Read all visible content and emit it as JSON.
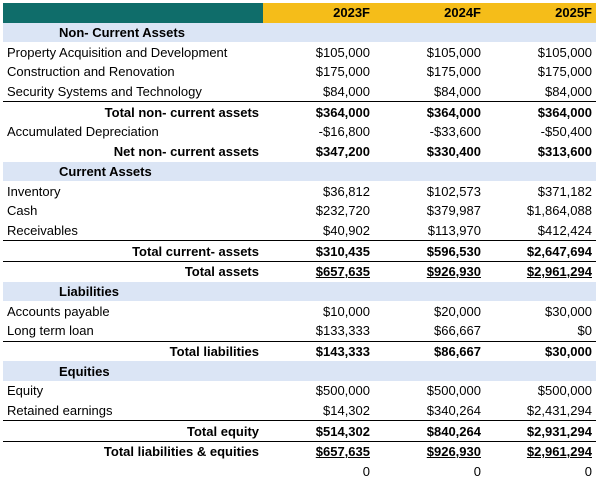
{
  "header": {
    "years": [
      "2023F",
      "2024F",
      "2025F"
    ]
  },
  "rows": [
    {
      "type": "section",
      "label": "Non- Current Assets"
    },
    {
      "type": "line",
      "label": "Property Acquisition and Development",
      "values": [
        "$105,000",
        "$105,000",
        "$105,000"
      ]
    },
    {
      "type": "line",
      "label": "Construction and Renovation",
      "values": [
        "$175,000",
        "$175,000",
        "$175,000"
      ]
    },
    {
      "type": "line",
      "label": "Security Systems and Technology",
      "values": [
        "$84,000",
        "$84,000",
        "$84,000"
      ]
    },
    {
      "type": "total",
      "label": "Total non- current assets",
      "values": [
        "$364,000",
        "$364,000",
        "$364,000"
      ]
    },
    {
      "type": "line",
      "label": "Accumulated Depreciation",
      "values": [
        "-$16,800",
        "-$33,600",
        "-$50,400"
      ]
    },
    {
      "type": "total-nb",
      "label": "Net non- current assets",
      "values": [
        "$347,200",
        "$330,400",
        "$313,600"
      ]
    },
    {
      "type": "section",
      "label": "Current Assets"
    },
    {
      "type": "line",
      "label": "Inventory",
      "values": [
        "$36,812",
        "$102,573",
        "$371,182"
      ]
    },
    {
      "type": "line",
      "label": "Cash",
      "values": [
        "$232,720",
        "$379,987",
        "$1,864,088"
      ]
    },
    {
      "type": "line",
      "label": "Receivables",
      "values": [
        "$40,902",
        "$113,970",
        "$412,424"
      ]
    },
    {
      "type": "total",
      "label": "Total current- assets",
      "values": [
        "$310,435",
        "$596,530",
        "$2,647,694"
      ]
    },
    {
      "type": "total-ul",
      "label": "Total assets",
      "values": [
        "$657,635",
        "$926,930",
        "$2,961,294"
      ]
    },
    {
      "type": "section",
      "label": "Liabilities"
    },
    {
      "type": "line",
      "label": "Accounts payable",
      "values": [
        "$10,000",
        "$20,000",
        "$30,000"
      ]
    },
    {
      "type": "line",
      "label": "Long term loan",
      "values": [
        "$133,333",
        "$66,667",
        "$0"
      ]
    },
    {
      "type": "total",
      "label": "Total liabilities",
      "values": [
        "$143,333",
        "$86,667",
        "$30,000"
      ]
    },
    {
      "type": "section",
      "label": "Equities"
    },
    {
      "type": "line",
      "label": "Equity",
      "values": [
        "$500,000",
        "$500,000",
        "$500,000"
      ]
    },
    {
      "type": "line",
      "label": "Retained earnings",
      "values": [
        "$14,302",
        "$340,264",
        "$2,431,294"
      ]
    },
    {
      "type": "total",
      "label": "Total equity",
      "values": [
        "$514,302",
        "$840,264",
        "$2,931,294"
      ]
    },
    {
      "type": "total-ul",
      "label": "Total liabilities & equities",
      "values": [
        "$657,635",
        "$926,930",
        "$2,961,294"
      ]
    },
    {
      "type": "line",
      "label": "",
      "values": [
        "0",
        "0",
        "0"
      ]
    }
  ]
}
